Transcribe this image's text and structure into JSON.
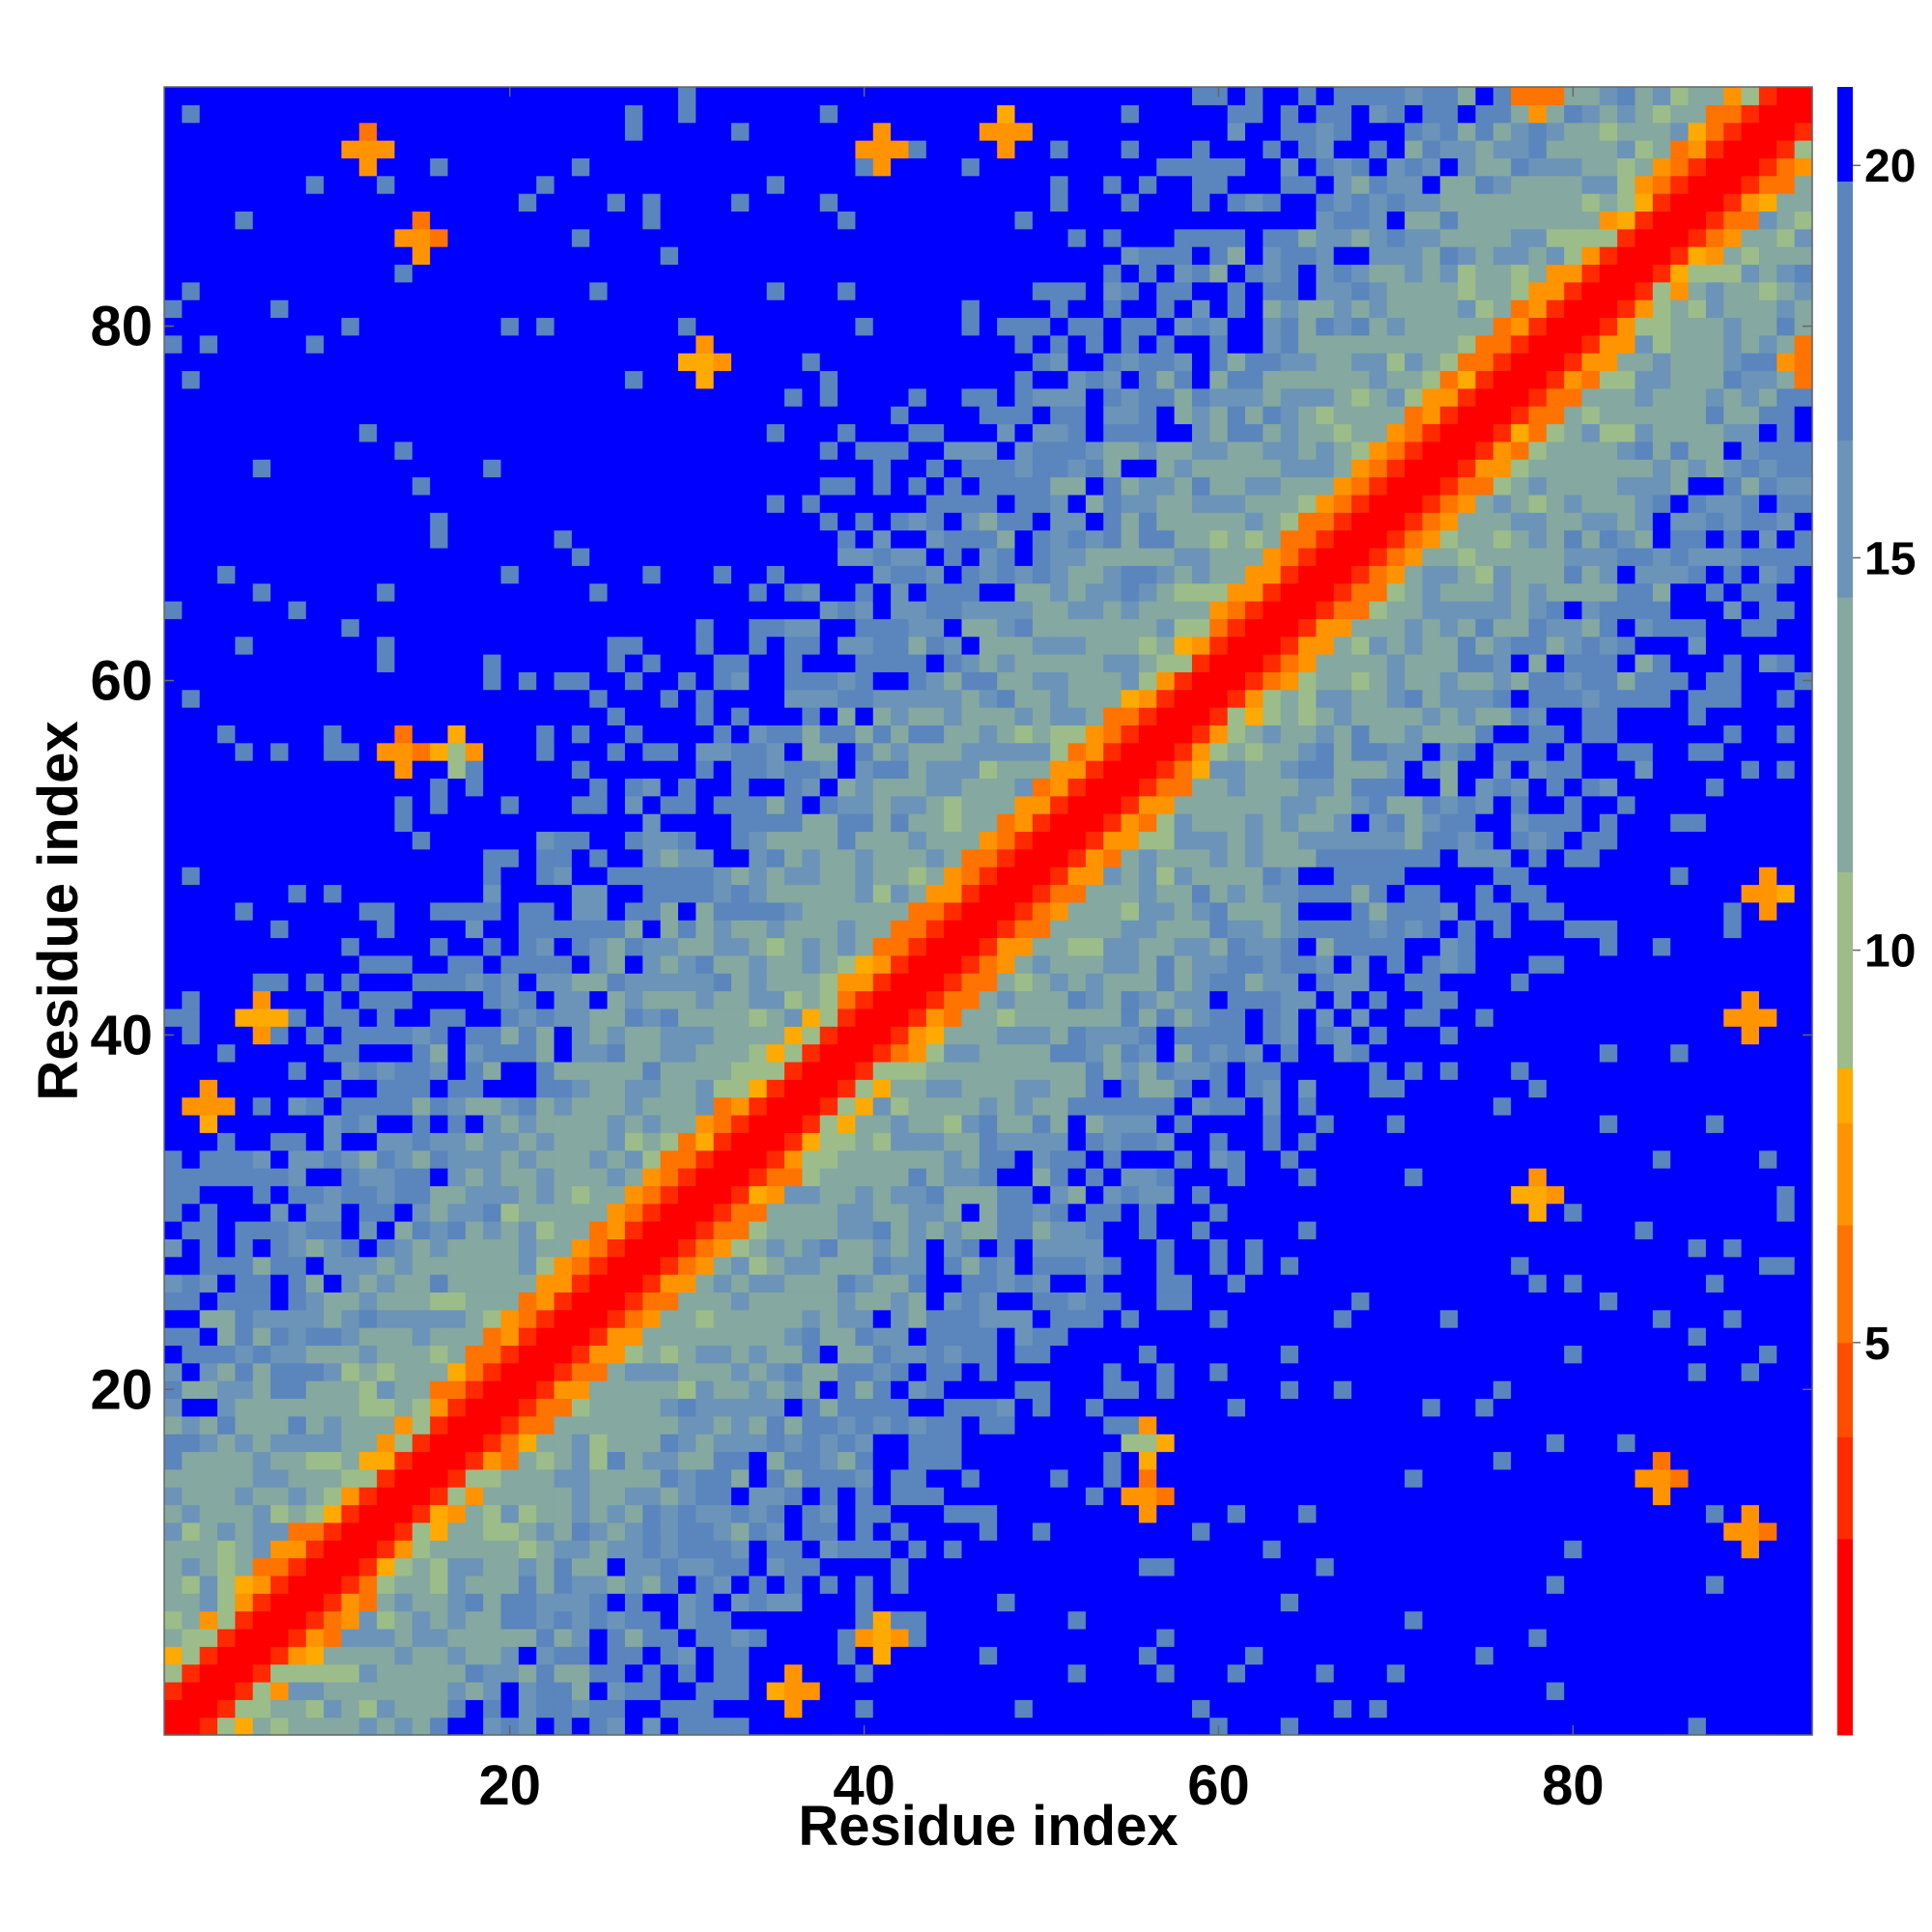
{
  "chart_data": {
    "type": "heatmap",
    "title": "",
    "xlabel": "Residue index",
    "ylabel": "Residue index",
    "n_residues": 93,
    "xlim": [
      0.5,
      93.5
    ],
    "ylim": [
      0.5,
      93.5
    ],
    "x_ticks": [
      20,
      40,
      60,
      80
    ],
    "y_ticks": [
      20,
      40,
      60,
      80
    ],
    "value_range": [
      0,
      21
    ],
    "symmetric": true,
    "colorbar": {
      "ticks": [
        5,
        10,
        15,
        20
      ],
      "range": [
        0,
        21
      ],
      "bands": [
        {
          "max": 2.5,
          "color": "#ff0000"
        },
        {
          "max": 3.8,
          "color": "#ff2a00"
        },
        {
          "max": 5.0,
          "color": "#ff4d00"
        },
        {
          "max": 6.5,
          "color": "#ff7300"
        },
        {
          "max": 7.8,
          "color": "#ff9400"
        },
        {
          "max": 8.5,
          "color": "#ffaa00"
        },
        {
          "max": 11.0,
          "color": "#9cbc8a"
        },
        {
          "max": 14.5,
          "color": "#85a8a0"
        },
        {
          "max": 16.5,
          "color": "#6b94b8"
        },
        {
          "max": 19.8,
          "color": "#5b85bd"
        },
        {
          "max": 21.0,
          "color": "#0000ff"
        }
      ]
    },
    "matrix_description_values": {
      "diagonal_width_red": 1,
      "helix_contacts": [
        [
          6,
          12
        ],
        [
          16,
          28
        ],
        [
          25,
          36
        ],
        [
          39,
          58
        ],
        [
          60,
          82
        ],
        [
          84,
          92
        ]
      ],
      "long_range_contacts": [
        {
          "i": 36,
          "j": 3,
          "value": 6.5
        },
        {
          "i": 41,
          "j": 6,
          "value": 7.0
        },
        {
          "i": 56,
          "j": 14,
          "value": 6.0
        },
        {
          "i": 56,
          "j": 17,
          "value": 7.5
        },
        {
          "i": 78,
          "j": 31,
          "value": 7.0
        },
        {
          "i": 85,
          "j": 15,
          "value": 6.0
        },
        {
          "i": 90,
          "j": 41,
          "value": 6.5
        },
        {
          "i": 91,
          "j": 48,
          "value": 6.5
        },
        {
          "i": 93,
          "j": 78,
          "value": 6.0
        },
        {
          "i": 12,
          "j": 90,
          "value": 5.5
        }
      ]
    }
  }
}
